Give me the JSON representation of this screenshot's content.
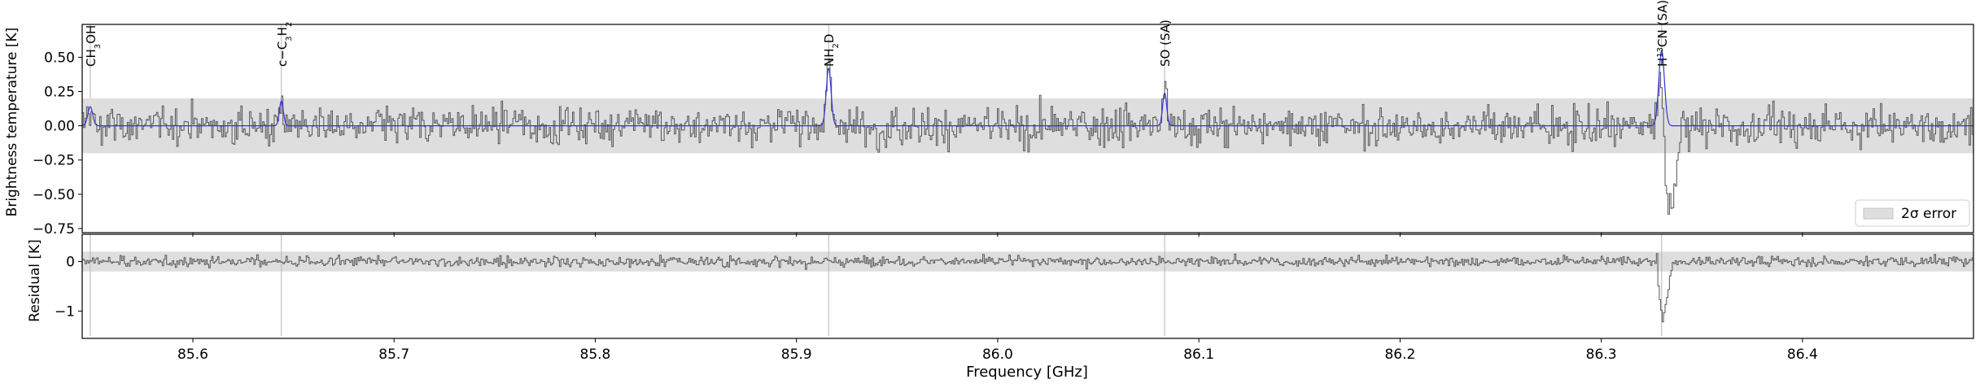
{
  "chart_data": [
    {
      "type": "line",
      "panel": "spectrum",
      "xlabel": "",
      "ylabel": "Brightness temperature [K]",
      "xlim": [
        85.545,
        86.485
      ],
      "ylim": [
        -0.78,
        0.74
      ],
      "yticks": [
        0.5,
        0.25,
        0.0,
        -0.25,
        -0.5,
        -0.75
      ],
      "ytick_labels": [
        "0.50",
        "0.25",
        "0.00",
        "−0.25",
        "−0.50",
        "−0.75"
      ],
      "error_band": [
        -0.2,
        0.2
      ],
      "legend": {
        "label": "2σ error",
        "placement": "bottom-right"
      },
      "series": [
        {
          "role": "observed",
          "color": "#555555",
          "noise_sigma": 0.1
        },
        {
          "role": "model",
          "color": "#3535d8"
        }
      ],
      "lines": [
        {
          "label_html": "CH<tspan baseline-shift='sub' font-size='10'>3</tspan>OH",
          "label_text": "CH3OH",
          "x": 85.549,
          "amp": 0.14,
          "width": 0.0012,
          "marker_top": 0.2
        },
        {
          "label_html": "c−C<tspan baseline-shift='sub' font-size='10'>3</tspan>H<tspan baseline-shift='sub' font-size='10'>2</tspan>",
          "label_text": "c-C3H2",
          "x": 85.644,
          "amp": 0.18,
          "width": 0.001,
          "marker_top": 0.2
        },
        {
          "label_html": "NH<tspan baseline-shift='sub' font-size='10'>2</tspan>D",
          "label_text": "NH2D",
          "x": 85.916,
          "amp": 0.42,
          "width": 0.0012,
          "marker_top": 0.45
        },
        {
          "label_html": "SO (SA)",
          "label_text": "SO (SA)",
          "x": 86.083,
          "amp": 0.24,
          "width": 0.001,
          "marker_top": 0.28
        },
        {
          "label_html": "H<tspan baseline-shift='super' font-size='10'>13</tspan>CN (SA)",
          "label_text": "H13CN (SA)",
          "x": 86.33,
          "amp": 0.55,
          "width": 0.0014,
          "marker_top": 0.5
        }
      ],
      "absorption": {
        "x": 86.33,
        "depth": -0.65,
        "width": 0.0025
      }
    },
    {
      "type": "line",
      "panel": "residual",
      "xlabel": "Frequency [GHz]",
      "ylabel": "Residual [K]",
      "xlim": [
        85.545,
        86.485
      ],
      "ylim": [
        -1.55,
        0.55
      ],
      "yticks": [
        0,
        -1
      ],
      "ytick_labels": [
        "0",
        "−1"
      ],
      "xticks": [
        85.6,
        85.7,
        85.8,
        85.9,
        86.0,
        86.1,
        86.2,
        86.3,
        86.4
      ],
      "xtick_labels": [
        "85.6",
        "85.7",
        "85.8",
        "85.9",
        "86.0",
        "86.1",
        "86.2",
        "86.3",
        "86.4"
      ],
      "error_band": [
        -0.2,
        0.2
      ],
      "series": [
        {
          "role": "residual",
          "color": "#555555",
          "noise_sigma": 0.07
        }
      ]
    }
  ]
}
